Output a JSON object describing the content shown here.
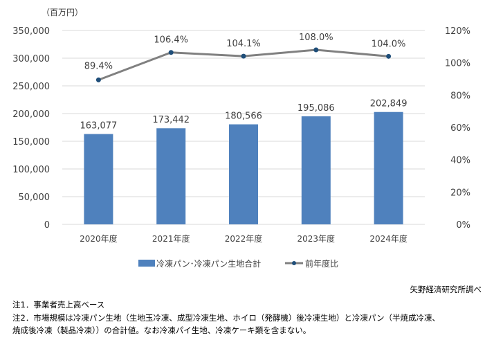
{
  "chart_data": {
    "type": "bar+line",
    "categories": [
      "2020年度",
      "2021年度",
      "2022年度",
      "2023年度",
      "2024年度"
    ],
    "series": [
      {
        "name": "冷凍パン･冷凍パン生地合計",
        "type": "bar",
        "axis": "left",
        "values": [
          163077,
          173442,
          180566,
          195086,
          202849
        ],
        "labels": [
          "163,077",
          "173,442",
          "180,566",
          "195,086",
          "202,849"
        ],
        "color": "#4f81bd"
      },
      {
        "name": "前年度比",
        "type": "line",
        "axis": "right",
        "values": [
          89.4,
          106.4,
          104.1,
          108.0,
          104.0
        ],
        "labels": [
          "89.4%",
          "106.4%",
          "104.1%",
          "108.0%",
          "104.0%"
        ],
        "color": "#808080",
        "marker_color": "#1f4e79"
      }
    ],
    "ylabel": "（百万円）",
    "ylim": [
      0,
      350000
    ],
    "y_ticks": [
      "0",
      "50,000",
      "100,000",
      "150,000",
      "200,000",
      "250,000",
      "300,000",
      "350,000"
    ],
    "y2lim": [
      0,
      120
    ],
    "y2_ticks": [
      "0%",
      "20%",
      "40%",
      "60%",
      "80%",
      "100%",
      "120%"
    ],
    "grid": true,
    "legend": "bottom"
  },
  "source": "矢野経済研究所調べ",
  "notes": [
    "注1．事業者売上高ベース",
    "注2．市場規模は冷凍パン生地（生地玉冷凍、成型冷凍生地、ホイロ（発酵機）後冷凍生地）と冷凍パン（半焼成冷凍、",
    "焼成後冷凍（製品冷凍））の合計値。なお冷凍パイ生地、冷凍ケーキ類を含まない。"
  ]
}
